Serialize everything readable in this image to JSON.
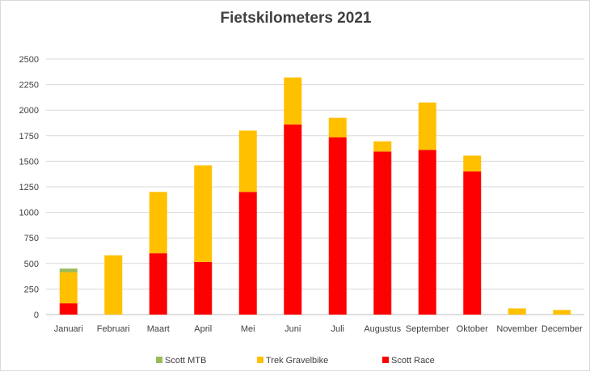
{
  "chart_data": {
    "type": "bar",
    "stacked": true,
    "title": "Fietskilometers 2021",
    "xlabel": "",
    "ylabel": "",
    "ylim": [
      0,
      2500
    ],
    "yticks": [
      0,
      250,
      500,
      750,
      1000,
      1250,
      1500,
      1750,
      2000,
      2250,
      2500
    ],
    "grid": true,
    "legend_position": "bottom",
    "categories": [
      "Januari",
      "Februari",
      "Maart",
      "April",
      "Mei",
      "Juni",
      "Juli",
      "Augustus",
      "September",
      "Oktober",
      "November",
      "December"
    ],
    "series": [
      {
        "name": "Scott Race",
        "color": "#ff0000",
        "values": [
          110,
          0,
          600,
          515,
          1200,
          1860,
          1735,
          1595,
          1610,
          1400,
          0,
          0
        ]
      },
      {
        "name": "Trek Gravelbike",
        "color": "#ffc000",
        "values": [
          305,
          580,
          600,
          945,
          600,
          460,
          190,
          100,
          465,
          155,
          60,
          45
        ]
      },
      {
        "name": "Scott MTB",
        "color": "#9bbb59",
        "values": [
          35,
          0,
          0,
          0,
          0,
          0,
          0,
          0,
          0,
          0,
          0,
          0
        ]
      }
    ],
    "legend_order": [
      "Scott MTB",
      "Trek Gravelbike",
      "Scott Race"
    ]
  }
}
